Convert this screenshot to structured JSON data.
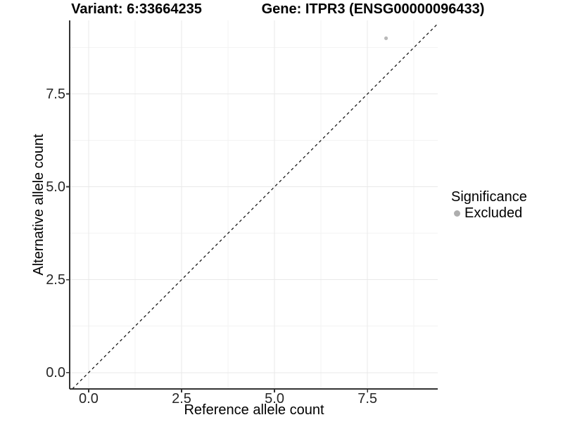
{
  "header": {
    "variant_title": "Variant: 6:33664235",
    "gene_title": "Gene: ITPR3 (ENSG00000096433)"
  },
  "chart_data": {
    "type": "scatter",
    "title": "Variant: 6:33664235 / Gene: ITPR3 (ENSG00000096433)",
    "xlabel": "Reference allele count",
    "ylabel": "Alternative allele count",
    "xlim": [
      -0.51,
      9.39
    ],
    "ylim": [
      -0.44,
      9.48
    ],
    "x_ticks": [
      0,
      2.5,
      5,
      7.5
    ],
    "x_tick_labels": [
      "0.0",
      "2.5",
      "5.0",
      "7.5"
    ],
    "y_ticks": [
      0,
      2.5,
      5,
      7.5
    ],
    "y_tick_labels": [
      "0.0",
      "2.5",
      "5.0",
      "7.5"
    ],
    "x_minor_ticks": [
      1.25,
      3.75,
      6.25,
      8.75
    ],
    "y_minor_ticks": [
      1.25,
      3.75,
      6.25,
      8.75
    ],
    "grid": true,
    "legend_position": "right",
    "legend_title": "Significance",
    "series": [
      {
        "name": "Excluded",
        "color": "#b9b9b9",
        "points": [
          {
            "x": 8,
            "y": 9
          }
        ]
      }
    ],
    "reference_line": {
      "style": "dashed",
      "equation": "y = x",
      "color": "#1a1a1a"
    }
  },
  "legend": {
    "title": "Significance",
    "items": [
      {
        "label": "Excluded",
        "color": "#aeaeae"
      }
    ]
  },
  "colors": {
    "background": "#ffffff",
    "axis_line": "#333333",
    "tick_mark": "#333333",
    "grid_major": "#e9e9e9",
    "grid_minor": "#f3f3f3",
    "point": "#b9b9b9",
    "dashed_line": "#1a1a1a",
    "text": "#000000"
  }
}
